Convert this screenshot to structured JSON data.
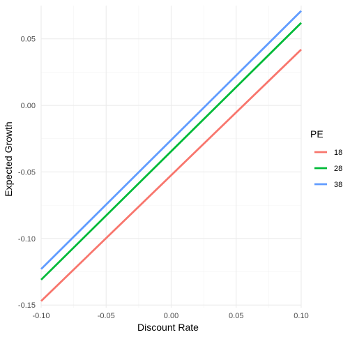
{
  "chart_data": {
    "type": "line",
    "xlabel": "Discount Rate",
    "ylabel": "Expected Growth",
    "xlim": [
      -0.1,
      0.1
    ],
    "ylim": [
      -0.152,
      0.075
    ],
    "x_ticks": [
      -0.1,
      -0.05,
      0.0,
      0.05,
      0.1
    ],
    "x_tick_labels": [
      "-0.10",
      "-0.05",
      "0.00",
      "0.05",
      "0.10"
    ],
    "y_ticks": [
      -0.15,
      -0.1,
      -0.05,
      0.0,
      0.05
    ],
    "y_tick_labels": [
      "-0.15",
      "-0.10",
      "-0.05",
      "0.00",
      "0.05"
    ],
    "grid": true,
    "legend": {
      "title": "PE",
      "position": "right"
    },
    "series": [
      {
        "name": "18",
        "color": "#F8766D",
        "x": [
          -0.1,
          0.1
        ],
        "y": [
          -0.147,
          0.042
        ]
      },
      {
        "name": "28",
        "color": "#00BA38",
        "x": [
          -0.1,
          0.1
        ],
        "y": [
          -0.131,
          0.062
        ]
      },
      {
        "name": "38",
        "color": "#619CFF",
        "x": [
          -0.1,
          0.1
        ],
        "y": [
          -0.123,
          0.071
        ]
      }
    ]
  }
}
